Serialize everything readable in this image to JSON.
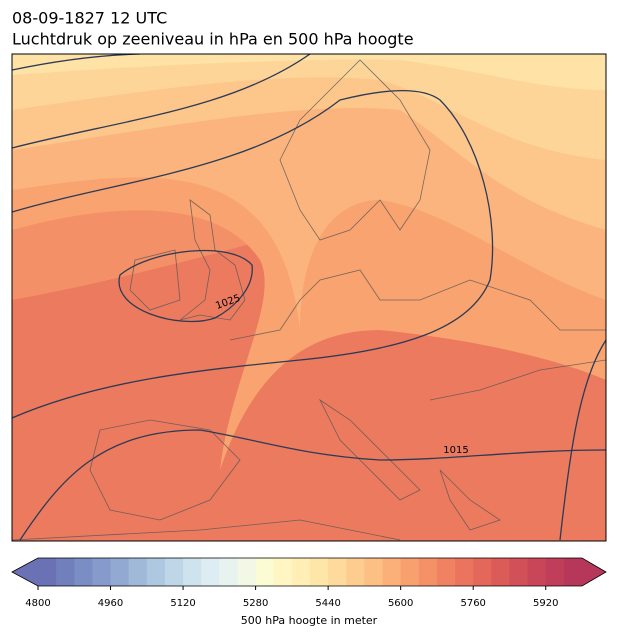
{
  "header": {
    "title": "08-09-1827 12 UTC",
    "subtitle": "Luchtdruk op zeeniveau in hPa en 500 hPa hoogte"
  },
  "map": {
    "contour_labels": [
      "1025",
      "1015"
    ]
  },
  "colorbar": {
    "label": "500 hPa hoogte in meter",
    "lim": [
      4800,
      6000
    ],
    "ticks": [
      4800,
      4960,
      5120,
      5280,
      5440,
      5600,
      5760,
      5920
    ],
    "colors": [
      "#6a72b5",
      "#717fbc",
      "#7a8dc4",
      "#869bcb",
      "#92aad2",
      "#a0b9d9",
      "#afc8e1",
      "#bfd6e8",
      "#cfe3ef",
      "#ddedf3",
      "#e8f3f0",
      "#f2f8e6",
      "#fbfbd4",
      "#fff6c4",
      "#ffeeb5",
      "#fee6a8",
      "#feda9c",
      "#fdcd90",
      "#fcbf84",
      "#fbb079",
      "#f9a06f",
      "#f59167",
      "#f08261",
      "#ea745d",
      "#e3675a",
      "#db5b58",
      "#d25058",
      "#c94659",
      "#c03e5a",
      "#b7375b"
    ]
  }
}
